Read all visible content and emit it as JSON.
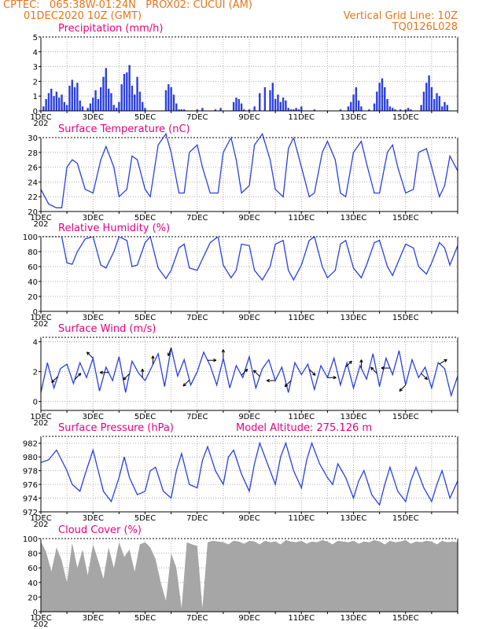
{
  "header": {
    "line1_left": "CPTEC:   065:38W-01:24N   PROX02: CUCUI (AM)",
    "line2_left": "01DEC2020 10Z (GMT)",
    "line2_right": "Vertical Grid Line: 10Z",
    "line3_right": "TQ0126L028"
  },
  "colors": {
    "series": "#2b3fe0",
    "title": "#e6007e",
    "header": "#e8741a",
    "cloud": "#a6a6a6",
    "arrow": "#000000"
  },
  "x_ticks": [
    "1DEC",
    "3DEC",
    "5DEC",
    "7DEC",
    "9DEC",
    "11DEC",
    "13DEC",
    "15DEC"
  ],
  "x_stub": "202",
  "chart_data": [
    {
      "type": "bar",
      "title": "Precipitation (mm/h)",
      "ylim": [
        0,
        5
      ],
      "yticks": [
        0,
        1,
        2,
        3,
        4,
        5
      ],
      "x_unit": "days since 01DEC 10Z",
      "x": [
        0.1,
        0.2,
        0.3,
        0.4,
        0.5,
        0.6,
        0.7,
        0.8,
        0.9,
        1.0,
        1.1,
        1.2,
        1.3,
        1.4,
        1.5,
        1.6,
        1.8,
        1.9,
        2.0,
        2.1,
        2.2,
        2.3,
        2.4,
        2.5,
        2.6,
        2.7,
        2.8,
        2.9,
        3.0,
        3.1,
        3.2,
        3.3,
        3.4,
        3.5,
        3.6,
        3.7,
        3.8,
        3.9,
        4.0,
        4.8,
        4.9,
        5.0,
        5.1,
        5.2,
        5.3,
        5.4,
        5.5,
        6.0,
        6.2,
        6.7,
        6.9,
        7.4,
        7.5,
        7.6,
        7.7,
        7.8,
        8.0,
        8.2,
        8.4,
        8.6,
        8.8,
        8.9,
        9.0,
        9.1,
        9.2,
        9.3,
        9.4,
        9.5,
        9.6,
        9.7,
        9.8,
        9.9,
        10.0,
        10.5,
        11.5,
        11.8,
        11.9,
        12.0,
        12.1,
        12.2,
        12.3,
        12.6,
        12.8,
        12.9,
        13.0,
        13.1,
        13.2,
        13.3,
        13.4,
        13.5,
        13.6,
        13.8,
        14.0,
        14.1,
        14.2,
        14.6,
        14.7,
        14.8,
        14.9,
        15.0,
        15.1,
        15.2,
        15.3,
        15.4,
        15.5,
        15.6
      ],
      "values": [
        0.3,
        0.8,
        1.2,
        1.5,
        1.0,
        1.3,
        0.9,
        1.1,
        0.6,
        0.4,
        1.7,
        2.1,
        1.6,
        1.9,
        0.7,
        0.3,
        0.2,
        0.5,
        0.9,
        1.4,
        0.8,
        1.6,
        2.3,
        2.9,
        1.5,
        1.2,
        0.4,
        0.2,
        0.6,
        1.8,
        2.5,
        2.6,
        3.1,
        1.7,
        1.1,
        2.3,
        1.3,
        0.6,
        0.2,
        1.4,
        1.8,
        1.6,
        1.1,
        0.5,
        0.1,
        0.1,
        0.1,
        0.1,
        0.2,
        0.1,
        0.2,
        0.6,
        0.9,
        0.8,
        0.5,
        0.1,
        0.1,
        0.3,
        1.2,
        1.6,
        1.4,
        1.9,
        0.8,
        1.1,
        0.6,
        0.9,
        0.7,
        0.2,
        0.1,
        0.1,
        0.2,
        0.1,
        0.3,
        0.1,
        0.1,
        0.3,
        0.6,
        1.1,
        1.6,
        0.7,
        0.3,
        0.1,
        0.5,
        1.3,
        1.9,
        2.2,
        1.6,
        0.8,
        0.3,
        0.2,
        0.1,
        0.1,
        0.1,
        0.2,
        0.1,
        0.4,
        1.3,
        1.9,
        2.4,
        1.6,
        0.8,
        1.2,
        1.0,
        0.3,
        0.6,
        0.4
      ]
    },
    {
      "type": "line",
      "title": "Surface Temperature (nC)",
      "ylim": [
        20,
        30
      ],
      "yticks": [
        20,
        22,
        24,
        26,
        28,
        30
      ],
      "x_unit": "days since 01DEC 10Z",
      "x": [
        0,
        0.3,
        0.6,
        0.8,
        1.0,
        1.2,
        1.4,
        1.7,
        2.0,
        2.3,
        2.5,
        2.8,
        3.0,
        3.3,
        3.5,
        3.7,
        4.0,
        4.2,
        4.5,
        4.8,
        5.0,
        5.3,
        5.5,
        5.7,
        6.0,
        6.2,
        6.5,
        6.8,
        7.0,
        7.3,
        7.5,
        7.7,
        8.0,
        8.2,
        8.5,
        8.8,
        9.0,
        9.3,
        9.5,
        9.7,
        10.0,
        10.3,
        10.5,
        10.8,
        11.0,
        11.3,
        11.5,
        11.7,
        12.0,
        12.3,
        12.5,
        12.8,
        13.0,
        13.3,
        13.5,
        13.7,
        14.0,
        14.3,
        14.5,
        14.8,
        15.0,
        15.3,
        15.5,
        15.7,
        16.0
      ],
      "values": [
        23.0,
        21.0,
        20.5,
        20.5,
        26.0,
        27.0,
        26.5,
        23.0,
        22.5,
        27.0,
        28.8,
        26.0,
        22.0,
        23.0,
        27.5,
        27.0,
        23.0,
        22.0,
        29.0,
        30.5,
        28.0,
        22.5,
        22.5,
        28.0,
        29.0,
        26.0,
        22.5,
        22.5,
        28.0,
        30.0,
        27.0,
        22.5,
        23.5,
        29.0,
        30.5,
        27.0,
        23.0,
        22.0,
        28.5,
        30.0,
        26.0,
        22.0,
        22.5,
        28.0,
        29.5,
        27.0,
        22.5,
        22.0,
        28.0,
        29.5,
        26.5,
        22.5,
        22.5,
        28.0,
        29.0,
        26.0,
        22.5,
        23.0,
        28.0,
        28.5,
        26.0,
        22.0,
        23.5,
        27.5,
        25.5
      ]
    },
    {
      "type": "line",
      "title": "Relative Humidity (%)",
      "ylim": [
        0,
        100
      ],
      "yticks": [
        0,
        20,
        40,
        60,
        80,
        100
      ],
      "x_unit": "days since 01DEC 10Z",
      "x": [
        0,
        0.3,
        0.6,
        0.8,
        1.0,
        1.2,
        1.4,
        1.7,
        2.0,
        2.3,
        2.5,
        2.8,
        3.0,
        3.3,
        3.5,
        3.7,
        4.0,
        4.2,
        4.5,
        4.8,
        5.0,
        5.3,
        5.5,
        5.7,
        6.0,
        6.2,
        6.5,
        6.8,
        7.0,
        7.3,
        7.5,
        7.7,
        8.0,
        8.2,
        8.5,
        8.8,
        9.0,
        9.3,
        9.5,
        9.7,
        10.0,
        10.3,
        10.5,
        10.8,
        11.0,
        11.3,
        11.5,
        11.7,
        12.0,
        12.3,
        12.5,
        12.8,
        13.0,
        13.3,
        13.5,
        13.7,
        14.0,
        14.3,
        14.5,
        14.8,
        15.0,
        15.3,
        15.5,
        15.7,
        16.0
      ],
      "values": [
        100,
        100,
        100,
        100,
        65,
        63,
        80,
        97,
        100,
        62,
        58,
        80,
        100,
        95,
        60,
        62,
        92,
        100,
        58,
        44,
        55,
        85,
        90,
        58,
        55,
        70,
        92,
        100,
        62,
        45,
        55,
        90,
        88,
        55,
        42,
        60,
        90,
        95,
        55,
        42,
        62,
        95,
        100,
        60,
        45,
        55,
        90,
        95,
        58,
        45,
        62,
        92,
        95,
        60,
        48,
        65,
        90,
        85,
        60,
        50,
        65,
        92,
        85,
        62,
        88
      ]
    },
    {
      "type": "line",
      "title": "Surface Wind (m/s)",
      "ylim": [
        -0.6,
        4.3
      ],
      "yticks": [
        0,
        2,
        4
      ],
      "x_unit": "days since 01DEC 10Z",
      "x": [
        0,
        0.25,
        0.5,
        0.75,
        1.0,
        1.25,
        1.5,
        1.75,
        2.0,
        2.25,
        2.5,
        2.75,
        3.0,
        3.25,
        3.5,
        3.75,
        4.0,
        4.25,
        4.5,
        4.75,
        5.0,
        5.25,
        5.5,
        5.75,
        6.0,
        6.25,
        6.5,
        6.75,
        7.0,
        7.25,
        7.5,
        7.75,
        8.0,
        8.25,
        8.5,
        8.75,
        9.0,
        9.25,
        9.5,
        9.75,
        10.0,
        10.25,
        10.5,
        10.75,
        11.0,
        11.25,
        11.5,
        11.75,
        12.0,
        12.25,
        12.5,
        12.75,
        13.0,
        13.25,
        13.5,
        13.75,
        14.0,
        14.25,
        14.5,
        14.75,
        15.0,
        15.25,
        15.5,
        15.75,
        16.0
      ],
      "values": [
        0.6,
        2.6,
        0.9,
        2.2,
        2.5,
        1.2,
        2.6,
        1.6,
        2.9,
        0.7,
        2.3,
        1.4,
        3.0,
        0.6,
        2.7,
        1.9,
        1.4,
        2.3,
        3.2,
        1.0,
        3.6,
        1.7,
        2.8,
        1.1,
        2.0,
        3.3,
        2.4,
        1.1,
        2.9,
        0.9,
        2.4,
        1.6,
        3.0,
        0.9,
        2.2,
        2.8,
        1.4,
        2.3,
        0.6,
        2.6,
        1.8,
        2.5,
        0.8,
        2.4,
        1.6,
        2.9,
        1.1,
        2.6,
        0.9,
        2.4,
        1.5,
        3.2,
        1.0,
        2.9,
        1.8,
        3.4,
        1.1,
        2.8,
        1.6,
        2.3,
        0.9,
        2.6,
        2.2,
        0.4,
        1.7
      ],
      "arrows": [
        {
          "x": 0.65,
          "dir": 225
        },
        {
          "x": 1.3,
          "dir": 45
        },
        {
          "x": 2.0,
          "dir": 315
        },
        {
          "x": 2.6,
          "dir": 270
        },
        {
          "x": 3.4,
          "dir": 225
        },
        {
          "x": 3.9,
          "dir": 0
        },
        {
          "x": 4.3,
          "dir": 0
        },
        {
          "x": 5.0,
          "dir": 200
        },
        {
          "x": 5.7,
          "dir": 225
        },
        {
          "x": 6.4,
          "dir": 90
        },
        {
          "x": 7.0,
          "dir": 0
        },
        {
          "x": 7.7,
          "dir": 45
        },
        {
          "x": 8.4,
          "dir": 315
        },
        {
          "x": 9.0,
          "dir": 270
        },
        {
          "x": 9.6,
          "dir": 225
        },
        {
          "x": 10.3,
          "dir": 135
        },
        {
          "x": 11.0,
          "dir": 90
        },
        {
          "x": 11.7,
          "dir": 45
        },
        {
          "x": 12.3,
          "dir": 0
        },
        {
          "x": 12.9,
          "dir": 315
        },
        {
          "x": 13.4,
          "dir": 270
        },
        {
          "x": 14.0,
          "dir": 225
        },
        {
          "x": 14.6,
          "dir": 135
        },
        {
          "x": 15.3,
          "dir": 60
        }
      ]
    },
    {
      "type": "line",
      "title": "Surface Pressure (hPa)",
      "subtitle": "Model Altitude: 275.126  m",
      "ylim": [
        972,
        983
      ],
      "yticks": [
        972,
        974,
        976,
        978,
        980,
        982
      ],
      "x_unit": "days since 01DEC 10Z",
      "x": [
        0,
        0.3,
        0.6,
        0.8,
        1.0,
        1.2,
        1.5,
        1.7,
        2.0,
        2.2,
        2.4,
        2.7,
        3.0,
        3.2,
        3.4,
        3.7,
        4.0,
        4.2,
        4.4,
        4.7,
        5.0,
        5.2,
        5.4,
        5.7,
        6.0,
        6.2,
        6.4,
        6.7,
        7.0,
        7.2,
        7.4,
        7.7,
        8.0,
        8.2,
        8.4,
        8.7,
        9.0,
        9.2,
        9.4,
        9.7,
        10.0,
        10.2,
        10.4,
        10.7,
        11.0,
        11.2,
        11.4,
        11.7,
        12.0,
        12.2,
        12.4,
        12.7,
        13.0,
        13.2,
        13.4,
        13.7,
        14.0,
        14.2,
        14.4,
        14.7,
        15.0,
        15.2,
        15.4,
        15.7,
        16.0
      ],
      "values": [
        979.2,
        979.6,
        981.0,
        979.5,
        978.0,
        976.0,
        975.0,
        977.5,
        981.0,
        978.0,
        975.0,
        973.5,
        977.0,
        980.0,
        977.0,
        974.5,
        975.0,
        978.0,
        978.5,
        975.0,
        974.0,
        978.0,
        980.5,
        976.0,
        975.5,
        979.5,
        981.5,
        978.0,
        976.0,
        980.0,
        981.0,
        977.5,
        975.0,
        979.0,
        982.0,
        979.0,
        976.0,
        980.0,
        982.0,
        978.0,
        975.5,
        979.5,
        982.0,
        979.0,
        977.0,
        976.0,
        979.0,
        977.0,
        974.0,
        976.5,
        978.0,
        974.5,
        973.0,
        976.0,
        978.5,
        975.0,
        973.5,
        976.5,
        978.5,
        975.5,
        973.5,
        976.0,
        978.0,
        974.0,
        976.5
      ]
    },
    {
      "type": "area",
      "title": "Cloud Cover (%)",
      "ylim": [
        0,
        100
      ],
      "yticks": [
        0,
        20,
        40,
        60,
        80,
        100
      ],
      "x_unit": "days since 01DEC 10Z",
      "x": [
        0,
        0.2,
        0.4,
        0.6,
        0.8,
        1.0,
        1.2,
        1.4,
        1.6,
        1.8,
        2.0,
        2.2,
        2.4,
        2.6,
        2.8,
        3.0,
        3.2,
        3.4,
        3.6,
        3.8,
        4.0,
        4.2,
        4.4,
        4.6,
        4.8,
        5.0,
        5.2,
        5.4,
        5.6,
        5.8,
        6.0,
        6.2,
        6.4,
        6.6,
        6.8,
        7.0,
        7.2,
        7.4,
        7.6,
        7.8,
        8.0,
        8.2,
        8.4,
        8.6,
        8.8,
        9.0,
        9.2,
        9.4,
        9.6,
        9.8,
        10.0,
        10.2,
        10.4,
        10.6,
        10.8,
        11.0,
        11.2,
        11.4,
        11.6,
        11.8,
        12.0,
        12.2,
        12.4,
        12.6,
        12.8,
        13.0,
        13.2,
        13.4,
        13.6,
        13.8,
        14.0,
        14.2,
        14.4,
        14.6,
        14.8,
        15.0,
        15.2,
        15.4,
        15.6,
        15.8,
        16.0
      ],
      "values": [
        96,
        82,
        55,
        88,
        70,
        40,
        94,
        60,
        85,
        50,
        92,
        70,
        45,
        88,
        60,
        95,
        75,
        85,
        55,
        92,
        95,
        88,
        72,
        40,
        15,
        80,
        60,
        5,
        95,
        92,
        90,
        5,
        95,
        97,
        96,
        95,
        92,
        97,
        96,
        93,
        97,
        96,
        92,
        97,
        95,
        96,
        92,
        98,
        96,
        95,
        97,
        93,
        96,
        95,
        98,
        96,
        92,
        97,
        96,
        95,
        97,
        93,
        96,
        95,
        98,
        96,
        92,
        97,
        95,
        96,
        98,
        93,
        96,
        95,
        97,
        96,
        92,
        97,
        95,
        96,
        95
      ]
    }
  ]
}
